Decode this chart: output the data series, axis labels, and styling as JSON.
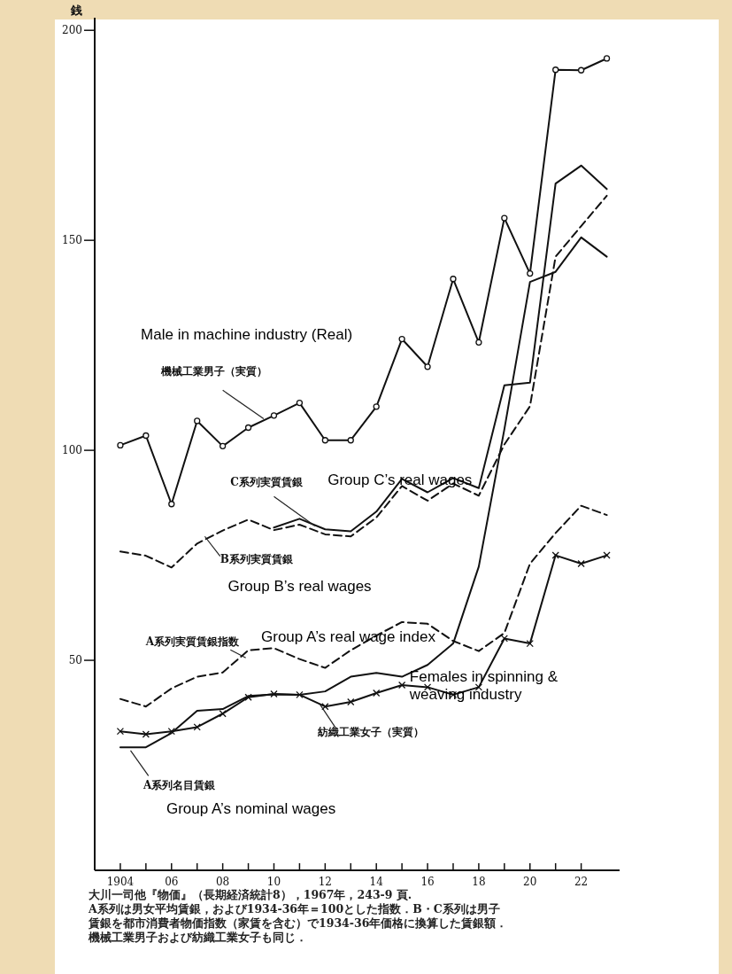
{
  "chart_data": {
    "type": "line",
    "ylabel": "銭",
    "x": [
      1904,
      1905,
      1906,
      1907,
      1908,
      1909,
      1910,
      1911,
      1912,
      1913,
      1914,
      1915,
      1916,
      1917,
      1918,
      1919,
      1920,
      1921,
      1922,
      1923
    ],
    "xlim": [
      1903,
      1923.5
    ],
    "ylim": [
      0,
      203
    ],
    "xticks": [
      {
        "value": 1904,
        "label": "1904"
      },
      {
        "value": 1905,
        "label": null
      },
      {
        "value": 1906,
        "label": "06"
      },
      {
        "value": 1907,
        "label": null
      },
      {
        "value": 1908,
        "label": "08"
      },
      {
        "value": 1909,
        "label": null
      },
      {
        "value": 1910,
        "label": "10"
      },
      {
        "value": 1911,
        "label": null
      },
      {
        "value": 1912,
        "label": "12"
      },
      {
        "value": 1913,
        "label": null
      },
      {
        "value": 1914,
        "label": "14"
      },
      {
        "value": 1915,
        "label": null
      },
      {
        "value": 1916,
        "label": "16"
      },
      {
        "value": 1917,
        "label": null
      },
      {
        "value": 1918,
        "label": "18"
      },
      {
        "value": 1919,
        "label": null
      },
      {
        "value": 1920,
        "label": "20"
      },
      {
        "value": 1921,
        "label": null
      },
      {
        "value": 1922,
        "label": "22"
      }
    ],
    "yticks": [
      50,
      100,
      150,
      200
    ],
    "grid": false,
    "series": [
      {
        "name": "機械工業男子（実質）",
        "color": "#111111",
        "marker": "circle",
        "line_style": "solid",
        "values": [
          101.2,
          103.5,
          87.2,
          107,
          101,
          105.4,
          108.3,
          111.3,
          102.4,
          102.4,
          110.4,
          126.5,
          119.9,
          140.8,
          125.7,
          155.3,
          142.1,
          190.6,
          190.5,
          193.3
        ]
      },
      {
        "name": "C系列実質賃銀",
        "color": "#111111",
        "marker": "none",
        "line_style": "solid",
        "values": [
          null,
          null,
          null,
          null,
          null,
          null,
          81.6,
          83.7,
          81.2,
          80.7,
          85.4,
          93.2,
          90,
          93.4,
          91,
          115.5,
          116.1,
          163.5,
          167.8,
          162.2
        ]
      },
      {
        "name": "B系列実質賃銀",
        "color": "#111111",
        "marker": "none",
        "line_style": "dashed",
        "values": [
          75.9,
          74.9,
          72.1,
          77.8,
          80.9,
          83.5,
          81,
          82.3,
          80,
          79.5,
          84,
          91.5,
          88,
          92.1,
          89.2,
          101.4,
          110.5,
          146.1,
          153.4,
          160.6
        ]
      },
      {
        "name": "A系列実質賃銀指数",
        "color": "#111111",
        "marker": "none",
        "line_style": "dashed",
        "values": [
          40.8,
          39,
          43.3,
          46.1,
          47.1,
          52.4,
          52.9,
          50.3,
          48.2,
          52.4,
          55.9,
          59.1,
          58.7,
          54.6,
          52.2,
          56.5,
          73,
          80.3,
          86.8,
          84.6
        ]
      },
      {
        "name": "紡織工業女子（実質）",
        "color": "#111111",
        "marker": "cross",
        "line_style": "solid",
        "values": [
          33.1,
          32.4,
          33.1,
          34.1,
          37.3,
          41.2,
          42,
          41.8,
          39,
          40.1,
          42.2,
          44.1,
          43.6,
          41.8,
          43.6,
          55.2,
          54,
          75,
          73,
          75
        ]
      },
      {
        "name": "A系列名目賃銀",
        "color": "#111111",
        "marker": "none",
        "line_style": "solid",
        "values": [
          29.3,
          29.3,
          32.7,
          38,
          38.4,
          41.5,
          41.9,
          41.8,
          42.6,
          46.1,
          47,
          46.1,
          48.9,
          54,
          72.3,
          105,
          140.1,
          142.5,
          150.7,
          146.1
        ]
      }
    ],
    "annotations": [
      "Male in machine industry (Real)",
      "Group C’s real wages",
      "Group B’s real wages",
      "Group A’s real wage index",
      "Females in spinning &\nweaving industry",
      "Group A’s nominal wages",
      "大川一司他『物価』（長期経済統計8），1967年，243-9 頁.",
      "A系列は男女平均賃銀，および1934-36年＝100とした指数．B・C系列は男子",
      "賃銀を都市消費者物価指数（家賃を含む）で1934-36年価格に換算した賃銀額．",
      "機械工業男子および紡織工業女子も同じ．"
    ]
  }
}
